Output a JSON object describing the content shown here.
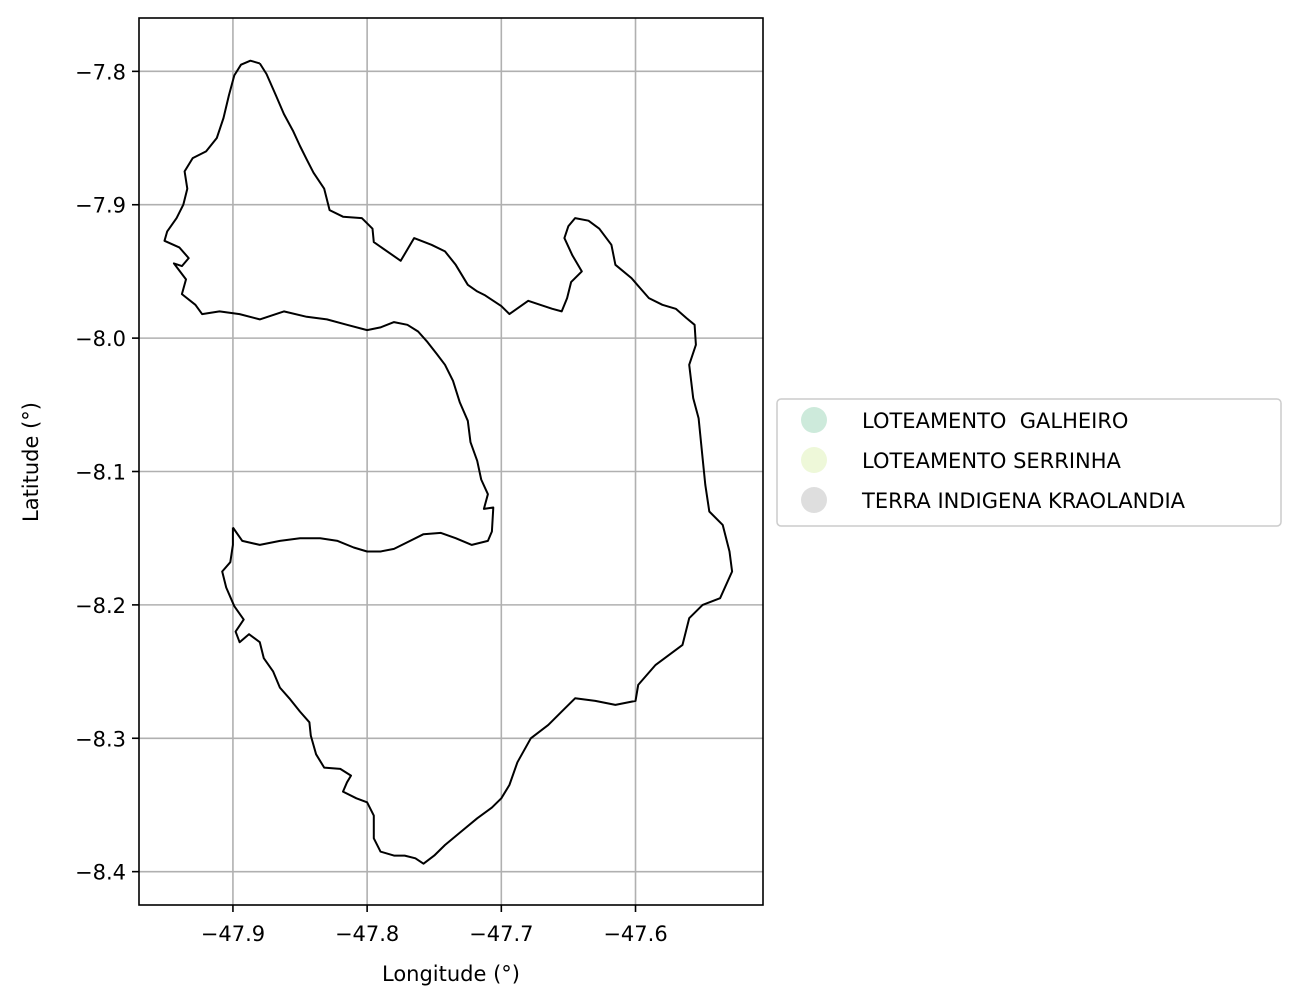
{
  "chart_data": {
    "type": "map",
    "xlabel": "Longitude (°)",
    "ylabel": "Latitude (°)",
    "xlim": [
      -47.97,
      -47.505
    ],
    "ylim": [
      -8.425,
      -7.76
    ],
    "x_ticks": [
      -47.9,
      -47.8,
      -47.7,
      -47.6
    ],
    "x_tick_labels": [
      "−47.9",
      "−47.8",
      "−47.7",
      "−47.6"
    ],
    "y_ticks": [
      -7.8,
      -7.9,
      -8.0,
      -8.1,
      -8.2,
      -8.3,
      -8.4
    ],
    "y_tick_labels": [
      "−7.8",
      "−7.9",
      "−8.0",
      "−8.1",
      "−8.2",
      "−8.3",
      "−8.4"
    ],
    "grid": true,
    "legend_position": "center-left outside right",
    "legend": [
      {
        "label": "LOTEAMENTO  GALHEIRO",
        "color": "#cdeadb"
      },
      {
        "label": "LOTEAMENTO SERRINHA",
        "color": "#eef8d9"
      },
      {
        "label": "TERRA INDIGENA KRAOLANDIA",
        "color": "#dedede"
      }
    ],
    "outline_color": "#000000",
    "boundaries": [
      {
        "name": "north-region",
        "coords": [
          [
            -47.88,
            -7.794
          ],
          [
            -47.887,
            -7.792
          ],
          [
            -47.894,
            -7.795
          ],
          [
            -47.899,
            -7.803
          ],
          [
            -47.903,
            -7.818
          ],
          [
            -47.907,
            -7.835
          ],
          [
            -47.912,
            -7.85
          ],
          [
            -47.92,
            -7.86
          ],
          [
            -47.93,
            -7.865
          ],
          [
            -47.936,
            -7.875
          ],
          [
            -47.934,
            -7.888
          ],
          [
            -47.937,
            -7.9
          ],
          [
            -47.942,
            -7.91
          ],
          [
            -47.949,
            -7.92
          ],
          [
            -47.951,
            -7.927
          ],
          [
            -47.94,
            -7.932
          ],
          [
            -47.933,
            -7.94
          ],
          [
            -47.938,
            -7.946
          ],
          [
            -47.944,
            -7.944
          ],
          [
            -47.935,
            -7.956
          ],
          [
            -47.938,
            -7.967
          ],
          [
            -47.928,
            -7.975
          ],
          [
            -47.923,
            -7.982
          ],
          [
            -47.91,
            -7.98
          ],
          [
            -47.895,
            -7.982
          ],
          [
            -47.88,
            -7.986
          ],
          [
            -47.862,
            -7.98
          ],
          [
            -47.845,
            -7.984
          ],
          [
            -47.83,
            -7.986
          ],
          [
            -47.815,
            -7.99
          ],
          [
            -47.8,
            -7.994
          ],
          [
            -47.79,
            -7.992
          ],
          [
            -47.78,
            -7.988
          ],
          [
            -47.77,
            -7.99
          ],
          [
            -47.762,
            -7.995
          ],
          [
            -47.755,
            -8.003
          ],
          [
            -47.748,
            -8.012
          ],
          [
            -47.742,
            -8.02
          ],
          [
            -47.736,
            -8.032
          ],
          [
            -47.731,
            -8.048
          ],
          [
            -47.725,
            -8.062
          ],
          [
            -47.723,
            -8.078
          ],
          [
            -47.718,
            -8.092
          ],
          [
            -47.715,
            -8.106
          ],
          [
            -47.71,
            -8.117
          ],
          [
            -47.713,
            -8.128
          ],
          [
            -47.706,
            -8.127
          ],
          [
            -47.707,
            -8.145
          ],
          [
            -47.71,
            -8.152
          ],
          [
            -47.722,
            -8.155
          ],
          [
            -47.734,
            -8.15
          ],
          [
            -47.745,
            -8.146
          ],
          [
            -47.758,
            -8.147
          ],
          [
            -47.768,
            -8.152
          ],
          [
            -47.78,
            -8.158
          ],
          [
            -47.79,
            -8.16
          ],
          [
            -47.8,
            -8.16
          ],
          [
            -47.81,
            -8.157
          ],
          [
            -47.822,
            -8.152
          ],
          [
            -47.835,
            -8.15
          ],
          [
            -47.85,
            -8.15
          ],
          [
            -47.865,
            -8.152
          ],
          [
            -47.88,
            -8.155
          ],
          [
            -47.893,
            -8.152
          ],
          [
            -47.9,
            -8.142
          ]
        ]
      },
      {
        "name": "main-boundary",
        "coords": [
          [
            -47.88,
            -7.794
          ],
          [
            -47.875,
            -7.802
          ],
          [
            -47.868,
            -7.818
          ],
          [
            -47.862,
            -7.832
          ],
          [
            -47.855,
            -7.845
          ],
          [
            -47.85,
            -7.856
          ],
          [
            -47.845,
            -7.866
          ],
          [
            -47.84,
            -7.876
          ],
          [
            -47.832,
            -7.888
          ],
          [
            -47.828,
            -7.904
          ],
          [
            -47.818,
            -7.909
          ],
          [
            -47.804,
            -7.91
          ],
          [
            -47.796,
            -7.918
          ],
          [
            -47.795,
            -7.928
          ],
          [
            -47.775,
            -7.942
          ],
          [
            -47.765,
            -7.925
          ],
          [
            -47.752,
            -7.93
          ],
          [
            -47.742,
            -7.935
          ],
          [
            -47.734,
            -7.945
          ],
          [
            -47.725,
            -7.96
          ],
          [
            -47.718,
            -7.965
          ],
          [
            -47.712,
            -7.968
          ],
          [
            -47.7,
            -7.976
          ],
          [
            -47.694,
            -7.982
          ],
          [
            -47.687,
            -7.977
          ],
          [
            -47.68,
            -7.972
          ],
          [
            -47.671,
            -7.975
          ],
          [
            -47.662,
            -7.978
          ],
          [
            -47.655,
            -7.98
          ],
          [
            -47.651,
            -7.97
          ],
          [
            -47.648,
            -7.958
          ],
          [
            -47.64,
            -7.95
          ],
          [
            -47.647,
            -7.938
          ],
          [
            -47.653,
            -7.925
          ],
          [
            -47.65,
            -7.916
          ],
          [
            -47.645,
            -7.91
          ],
          [
            -47.635,
            -7.912
          ],
          [
            -47.627,
            -7.918
          ],
          [
            -47.618,
            -7.93
          ],
          [
            -47.615,
            -7.945
          ],
          [
            -47.603,
            -7.955
          ],
          [
            -47.597,
            -7.962
          ],
          [
            -47.59,
            -7.97
          ],
          [
            -47.58,
            -7.975
          ],
          [
            -47.57,
            -7.978
          ],
          [
            -47.562,
            -7.985
          ],
          [
            -47.556,
            -7.99
          ],
          [
            -47.555,
            -8.005
          ],
          [
            -47.56,
            -8.02
          ],
          [
            -47.557,
            -8.045
          ],
          [
            -47.553,
            -8.06
          ],
          [
            -47.55,
            -8.09
          ],
          [
            -47.548,
            -8.11
          ],
          [
            -47.545,
            -8.13
          ],
          [
            -47.535,
            -8.14
          ],
          [
            -47.53,
            -8.16
          ],
          [
            -47.528,
            -8.175
          ],
          [
            -47.537,
            -8.195
          ],
          [
            -47.55,
            -8.2
          ],
          [
            -47.56,
            -8.21
          ],
          [
            -47.565,
            -8.23
          ],
          [
            -47.585,
            -8.245
          ],
          [
            -47.598,
            -8.26
          ],
          [
            -47.6,
            -8.272
          ],
          [
            -47.615,
            -8.275
          ],
          [
            -47.63,
            -8.272
          ],
          [
            -47.645,
            -8.27
          ],
          [
            -47.655,
            -8.28
          ],
          [
            -47.665,
            -8.29
          ],
          [
            -47.678,
            -8.3
          ],
          [
            -47.688,
            -8.318
          ],
          [
            -47.694,
            -8.335
          ],
          [
            -47.7,
            -8.345
          ],
          [
            -47.707,
            -8.352
          ],
          [
            -47.718,
            -8.36
          ],
          [
            -47.73,
            -8.37
          ],
          [
            -47.742,
            -8.38
          ],
          [
            -47.75,
            -8.388
          ],
          [
            -47.758,
            -8.394
          ],
          [
            -47.764,
            -8.39
          ],
          [
            -47.772,
            -8.388
          ],
          [
            -47.78,
            -8.388
          ],
          [
            -47.79,
            -8.385
          ],
          [
            -47.795,
            -8.375
          ],
          [
            -47.795,
            -8.358
          ],
          [
            -47.8,
            -8.348
          ],
          [
            -47.808,
            -8.345
          ],
          [
            -47.818,
            -8.34
          ],
          [
            -47.815,
            -8.333
          ],
          [
            -47.812,
            -8.328
          ],
          [
            -47.82,
            -8.323
          ],
          [
            -47.832,
            -8.322
          ],
          [
            -47.838,
            -8.312
          ],
          [
            -47.842,
            -8.298
          ],
          [
            -47.843,
            -8.288
          ],
          [
            -47.85,
            -8.28
          ],
          [
            -47.858,
            -8.27
          ],
          [
            -47.865,
            -8.262
          ],
          [
            -47.87,
            -8.25
          ],
          [
            -47.877,
            -8.24
          ],
          [
            -47.88,
            -8.228
          ],
          [
            -47.888,
            -8.222
          ],
          [
            -47.895,
            -8.228
          ],
          [
            -47.898,
            -8.22
          ],
          [
            -47.892,
            -8.211
          ],
          [
            -47.899,
            -8.201
          ],
          [
            -47.905,
            -8.187
          ],
          [
            -47.908,
            -8.175
          ],
          [
            -47.902,
            -8.168
          ],
          [
            -47.9,
            -8.155
          ],
          [
            -47.9,
            -8.142
          ]
        ]
      }
    ]
  }
}
